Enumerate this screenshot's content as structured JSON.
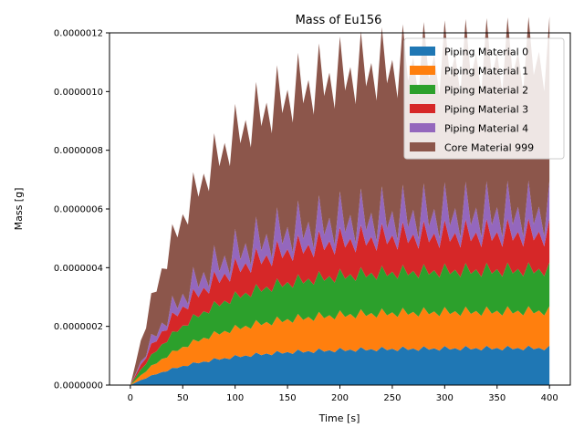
{
  "chart_data": {
    "type": "area",
    "stacked": true,
    "title": "Mass of Eu156",
    "xlabel": "Time [s]",
    "ylabel": "Mass [g]",
    "xlim": [
      -19.9,
      419.9
    ],
    "ylim": [
      0,
      1.2e-06
    ],
    "xticks": [
      0,
      50,
      100,
      150,
      200,
      250,
      300,
      350,
      400
    ],
    "xtick_labels": [
      "0",
      "50",
      "100",
      "150",
      "200",
      "250",
      "300",
      "350",
      "400"
    ],
    "yticks": [
      0,
      2e-07,
      4e-07,
      6e-07,
      8e-07,
      1e-06,
      1.2e-06
    ],
    "ytick_labels": [
      "0.0000000",
      "0.0000002",
      "0.0000004",
      "0.0000006",
      "0.0000008",
      "0.0000010",
      "0.0000012"
    ],
    "legend_position": "top-right",
    "x_sampling_step_s": 5,
    "series_note": "each series rises as A*(1-exp(-t/tau)) with a sawtooth ripple of ~20 s period",
    "series": [
      {
        "name": "Piping Material 0",
        "color": "#1f77b4",
        "plateau": 1.25e-07,
        "tau": 70,
        "ripple": 1e-08,
        "at_t": {
          "100": 9.5e-08,
          "200": 1.2e-07,
          "400": 1.2e-07
        }
      },
      {
        "name": "Piping Material 1",
        "color": "#ff7f0e",
        "plateau": 1.25e-07,
        "tau": 70,
        "ripple": 1e-08,
        "at_t": {
          "100": 1.95e-07,
          "200": 2.4e-07,
          "400": 2.45e-07
        }
      },
      {
        "name": "Piping Material 2",
        "color": "#2ca02c",
        "plateau": 1.4e-07,
        "tau": 70,
        "ripple": 1e-08,
        "at_t": {
          "100": 2.85e-07,
          "200": 3.7e-07,
          "400": 3.8e-07
        }
      },
      {
        "name": "Piping Material 3",
        "color": "#d62728",
        "plateau": 1.2e-07,
        "tau": 70,
        "ripple": 3e-08,
        "at_t": {
          "100": 3.9e-07,
          "200": 4.7e-07,
          "400": 5e-07
        }
      },
      {
        "name": "Piping Material 4",
        "color": "#9467bd",
        "plateau": 7e-08,
        "tau": 70,
        "ripple": 6e-08,
        "at_t": {
          "100": 4.2e-07,
          "200": 5.2e-07,
          "400": 5.5e-07
        }
      },
      {
        "name": "Core Material 999",
        "color": "#8c564b",
        "plateau": 5.2e-07,
        "tau": 70,
        "ripple": 4e-08,
        "at_t": {
          "50": 5.8e-07,
          "100": 8.8e-07,
          "200": 1.03e-06,
          "400": 1.08e-06
        }
      }
    ]
  }
}
